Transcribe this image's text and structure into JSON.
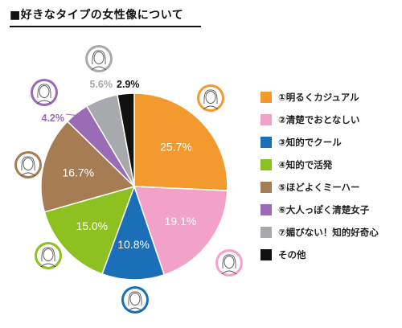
{
  "title": "■好きなタイプの女性像について",
  "colors": {
    "orange": "#f29a2e",
    "pink": "#f2a2c8",
    "blue": "#1a6fb8",
    "green": "#8cc11f",
    "brown": "#a67c52",
    "purple": "#9b6bb5",
    "gray": "#a7a9ac",
    "black": "#111111"
  },
  "chart_data": {
    "type": "pie",
    "title": "■好きなタイプの女性像について",
    "unit": "%",
    "start": "12 o'clock, clockwise",
    "slices": [
      {
        "label": "①明るくカジュアル",
        "value": 25.7,
        "display": "25.7%",
        "color": "#f29a2e",
        "label_color": "#ffffff"
      },
      {
        "label": "②清楚でおとなしい",
        "value": 19.1,
        "display": "19.1%",
        "color": "#f2a2c8",
        "label_color": "#ffffff"
      },
      {
        "label": "③知的でクール",
        "value": 10.8,
        "display": "10.8%",
        "color": "#1a6fb8",
        "label_color": "#ffffff"
      },
      {
        "label": "④知的で活発",
        "value": 15.0,
        "display": "15.0%",
        "color": "#8cc11f",
        "label_color": "#ffffff"
      },
      {
        "label": "⑤ほどよくミーハー",
        "value": 16.7,
        "display": "16.7%",
        "color": "#a67c52",
        "label_color": "#ffffff"
      },
      {
        "label": "⑥大人っぽく清楚女子",
        "value": 4.2,
        "display": "4.2%",
        "color": "#9b6bb5",
        "label_color": "#9b6bb5"
      },
      {
        "label": "⑦媚びない！知的好奇心",
        "value": 5.6,
        "display": "5.6%",
        "color": "#a7a9ac",
        "label_color": "#a7a9ac"
      },
      {
        "label": "その他",
        "value": 2.9,
        "display": "2.9%",
        "color": "#111111",
        "label_color": "#111111"
      }
    ]
  }
}
